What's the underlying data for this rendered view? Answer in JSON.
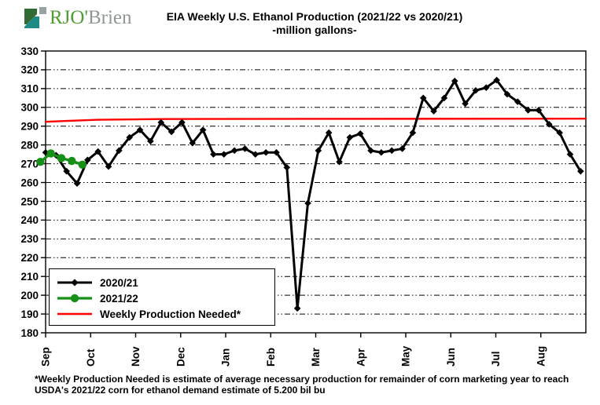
{
  "logo": {
    "primary": "RJO'",
    "secondary": "Brien",
    "primary_color": "#4f9c35",
    "secondary_color": "#909695",
    "icon_colors": {
      "dark_green": "#2f6b33",
      "teal": "#1d8a84",
      "gray": "#98a2a2"
    }
  },
  "title": {
    "line1": "EIA Weekly U.S. Ethanol Production (2021/22 vs 2020/21)",
    "line2": "-million  gallons-"
  },
  "chart_data": {
    "type": "line",
    "title": "EIA Weekly U.S. Ethanol Production (2021/22 vs 2020/21)",
    "units": "million gallons",
    "x_axis": {
      "tick_labels": [
        "Sep",
        "Oct",
        "Nov",
        "Dec",
        "Jan",
        "Feb",
        "Mar",
        "Apr",
        "May",
        "Jun",
        "Jul",
        "Aug"
      ],
      "weeks_total": 52
    },
    "y_axis": {
      "min": 180,
      "max": 330,
      "tick_step": 10,
      "tick_labels": [
        330,
        320,
        310,
        300,
        290,
        280,
        270,
        260,
        250,
        240,
        230,
        220,
        210,
        200,
        190,
        180
      ]
    },
    "grid": "horizontal-dashed",
    "legend_position": "bottom-left",
    "series": [
      {
        "name": "2020/21",
        "color": "#000000",
        "marker": "diamond",
        "values": [
          276,
          274.5,
          266,
          259.5,
          272,
          276.5,
          268.5,
          277,
          284,
          288,
          282,
          292,
          287,
          292,
          281,
          288,
          275,
          275,
          277,
          278,
          275,
          276,
          276,
          268,
          193,
          249,
          277,
          286.5,
          271,
          284,
          286,
          277,
          276,
          277,
          278,
          286.5,
          305,
          298,
          305,
          314,
          302,
          309,
          310.5,
          314.5,
          307,
          303,
          298.5,
          298.5,
          291,
          286.5,
          275,
          266
        ]
      },
      {
        "name": "2021/22",
        "color": "#169016",
        "marker": "circle",
        "x_weeks": [
          0.5,
          1.5,
          2.5,
          3.5,
          4.5
        ],
        "values": [
          271,
          275.5,
          273,
          271.5,
          269.5
        ]
      },
      {
        "name": "Weekly Production Needed*",
        "color": "#ff0000",
        "marker": "none",
        "x_weeks": [
          1,
          3,
          6,
          12,
          52.5
        ],
        "values": [
          292.3,
          292.8,
          293.4,
          293.8,
          294
        ]
      }
    ]
  },
  "footnote": "*Weekly Production Needed is estimate of average necessary production for remainder of corn marketing year to reach USDA's 2021/22 corn for ethanol demand estimate of 5.200 bil bu"
}
